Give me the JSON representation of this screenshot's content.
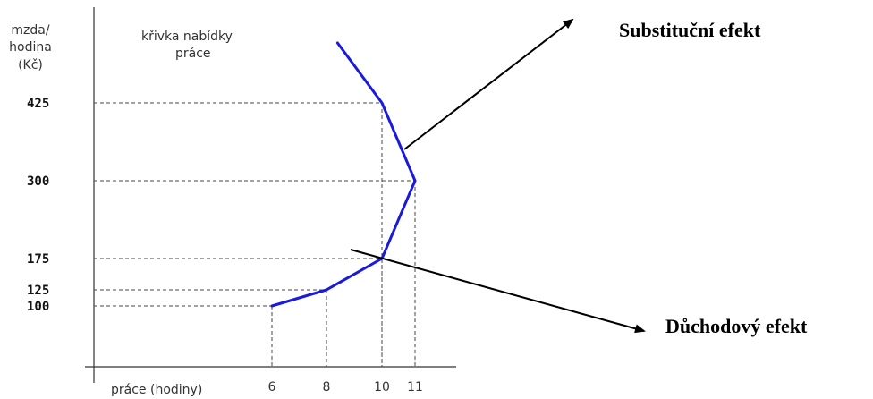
{
  "chart_data": {
    "type": "line",
    "ylabel_lines": [
      "mzda/",
      "hodina",
      "(Kč)"
    ],
    "xlabel": "práce (hodiny)",
    "curve_label_lines": [
      "křivka nabídky",
      "práce"
    ],
    "y_ticks": [
      "425",
      "300",
      "175",
      "125",
      "100"
    ],
    "x_ticks": [
      "6",
      "8",
      "10",
      "11"
    ],
    "series": [
      {
        "x": [
          6,
          8,
          10,
          11,
          10,
          8.4
        ],
        "y": [
          100,
          125,
          175,
          300,
          425,
          520
        ],
        "color": "#1a1adc"
      }
    ],
    "guide_points": [
      {
        "x": 6,
        "y": 100
      },
      {
        "x": 8,
        "y": 125
      },
      {
        "x": 10,
        "y": 175
      },
      {
        "x": 11,
        "y": 300
      },
      {
        "x": 10,
        "y": 425
      }
    ],
    "annotations": [
      {
        "text": "Substituční efekt",
        "at": {
          "x": 10.6,
          "y": 350
        },
        "direction": "up-right"
      },
      {
        "text": "Důchodový efekt",
        "at": {
          "x": 10,
          "y": 175
        },
        "direction": "down-right"
      }
    ]
  }
}
